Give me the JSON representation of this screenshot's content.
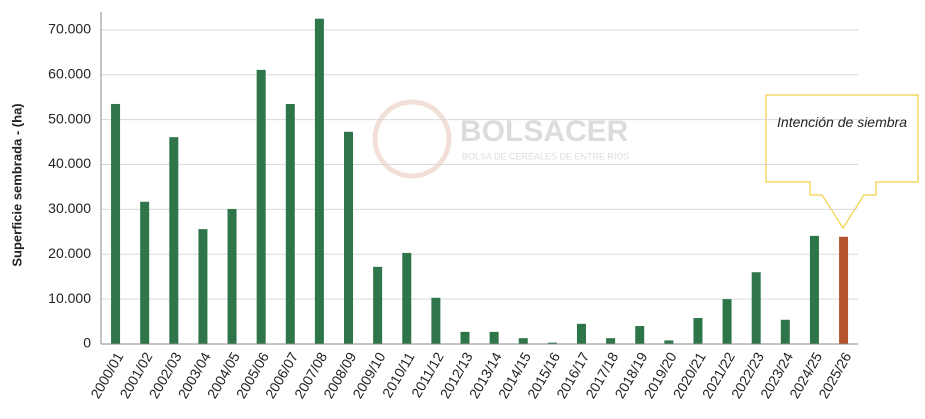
{
  "chart_data": {
    "type": "bar",
    "y_label": "Superficie sembrada - (ha)",
    "annotation": "Intención de siembra",
    "watermark": "BOLSACER",
    "watermark_subtitle": "BOLSA DE CEREALES DE ENTRE RÍOS",
    "categories": [
      "2000/01",
      "2001/02",
      "2002/03",
      "2003/04",
      "2004/05",
      "2005/06",
      "2006/07",
      "2007/08",
      "2008/09",
      "2009/10",
      "2010/11",
      "2011/12",
      "2012/13",
      "2013/14",
      "2014/15",
      "2015/16",
      "2016/17",
      "2017/18",
      "2018/19",
      "2019/20",
      "2020/21",
      "2021/22",
      "2022/23",
      "2023/24",
      "2024/25",
      "2025/26"
    ],
    "values": [
      53500,
      31700,
      46100,
      25600,
      30100,
      61100,
      53500,
      72500,
      47300,
      17200,
      20300,
      10300,
      2700,
      2700,
      1300,
      300,
      4500,
      1300,
      4000,
      800,
      5800,
      10000,
      16000,
      5400,
      24100,
      23900
    ],
    "colors": [
      "#2e7549",
      "#2e7549",
      "#2e7549",
      "#2e7549",
      "#2e7549",
      "#2e7549",
      "#2e7549",
      "#2e7549",
      "#2e7549",
      "#2e7549",
      "#2e7549",
      "#2e7549",
      "#2e7549",
      "#2e7549",
      "#2e7549",
      "#2e7549",
      "#2e7549",
      "#2e7549",
      "#2e7549",
      "#2e7549",
      "#2e7549",
      "#2e7549",
      "#2e7549",
      "#2e7549",
      "#2e7549",
      "#b5532f"
    ],
    "ylim": [
      0,
      74000
    ],
    "yticks": [
      0,
      {
        "value": 10000,
        "label": "10.000"
      },
      {
        "value": 20000,
        "label": "20.000"
      },
      {
        "value": 30000,
        "label": "30.000"
      },
      {
        "value": 40000,
        "label": "40.000"
      },
      {
        "value": 50000,
        "label": "50.000"
      },
      {
        "value": 60000,
        "label": "60.000"
      },
      {
        "value": 70000,
        "label": "70.000"
      }
    ],
    "grid": true
  }
}
